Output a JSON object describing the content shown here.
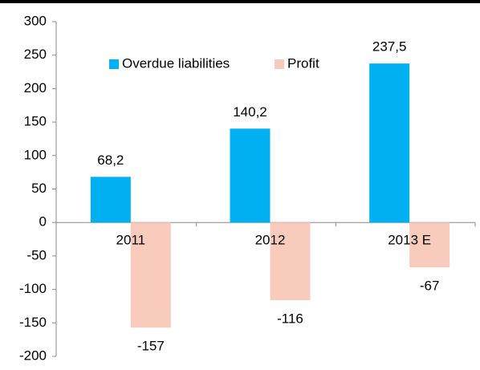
{
  "chart_data": {
    "type": "bar",
    "categories": [
      "2011",
      "2012",
      "2013 E"
    ],
    "series": [
      {
        "name": "Overdue liabilities",
        "color": "#00b0f0",
        "values": [
          68.2,
          140.2,
          237.5
        ],
        "value_labels": [
          "68,2",
          "140,2",
          "237,5"
        ]
      },
      {
        "name": "Profit",
        "color": "#f8cbbd",
        "values": [
          -157,
          -116,
          -67
        ]
      }
    ],
    "ylim": [
      -200,
      300
    ],
    "yticks": [
      -200,
      -150,
      -100,
      -50,
      0,
      50,
      100,
      150,
      200,
      250,
      300
    ]
  }
}
